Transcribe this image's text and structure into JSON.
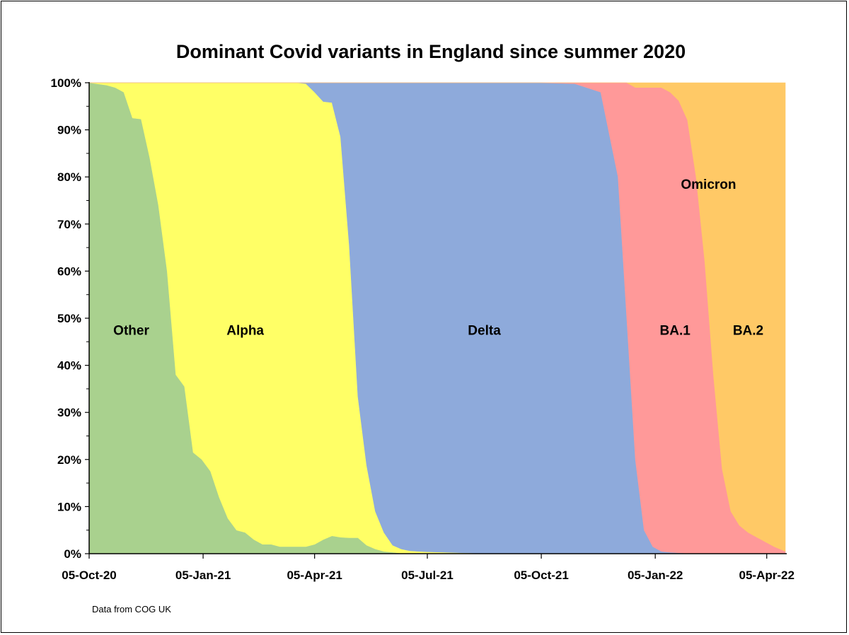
{
  "chart_data": {
    "type": "area",
    "title": "Dominant Covid variants in England since summer 2020",
    "xlabel": "",
    "ylabel": "",
    "stacked": true,
    "normalized": true,
    "grid": false,
    "legend": "none (series labelled inside areas)",
    "x_ticks": [
      "05-Oct-20",
      "05-Jan-21",
      "05-Apr-21",
      "05-Jul-21",
      "05-Oct-21",
      "05-Jan-22",
      "05-Apr-22"
    ],
    "y_ticks": [
      "0%",
      "10%",
      "20%",
      "30%",
      "40%",
      "50%",
      "60%",
      "70%",
      "80%",
      "90%",
      "100%"
    ],
    "ylim": [
      0,
      100
    ],
    "xlim": [
      "2020-10-05",
      "2022-04-20"
    ],
    "x": [
      "2020-10-05",
      "2020-10-19",
      "2020-10-26",
      "2020-11-02",
      "2020-11-09",
      "2020-11-16",
      "2020-11-23",
      "2020-11-30",
      "2020-12-07",
      "2020-12-14",
      "2020-12-21",
      "2020-12-28",
      "2021-01-04",
      "2021-01-11",
      "2021-01-18",
      "2021-01-25",
      "2021-02-01",
      "2021-02-08",
      "2021-02-15",
      "2021-02-22",
      "2021-03-01",
      "2021-03-08",
      "2021-03-15",
      "2021-03-22",
      "2021-03-29",
      "2021-04-05",
      "2021-04-12",
      "2021-04-19",
      "2021-04-26",
      "2021-05-03",
      "2021-05-10",
      "2021-05-17",
      "2021-05-24",
      "2021-05-31",
      "2021-06-07",
      "2021-06-14",
      "2021-06-21",
      "2021-06-28",
      "2021-07-05",
      "2021-07-19",
      "2021-08-02",
      "2021-08-16",
      "2021-09-06",
      "2021-10-04",
      "2021-11-01",
      "2021-11-22",
      "2021-12-06",
      "2021-12-13",
      "2021-12-20",
      "2021-12-27",
      "2022-01-03",
      "2022-01-10",
      "2022-01-17",
      "2022-01-24",
      "2022-01-31",
      "2022-02-07",
      "2022-02-14",
      "2022-02-21",
      "2022-02-28",
      "2022-03-07",
      "2022-03-14",
      "2022-03-21",
      "2022-03-28",
      "2022-04-04",
      "2022-04-11",
      "2022-04-20"
    ],
    "series": [
      {
        "name": "Other",
        "color": "#a9d18e",
        "values": [
          100,
          99.5,
          99,
          98,
          92.5,
          92.3,
          84,
          74,
          60,
          38,
          35.5,
          21.5,
          20,
          17.5,
          12,
          7.5,
          5,
          4.5,
          3,
          2,
          2,
          1.5,
          1.5,
          1.5,
          1.5,
          2,
          3,
          3.8,
          3.5,
          3.4,
          3.4,
          1.8,
          1,
          0.5,
          0.3,
          0.1,
          0,
          0,
          0,
          0,
          0,
          0,
          0,
          0,
          0,
          0,
          0,
          0,
          0,
          0,
          0,
          0,
          0,
          0,
          0,
          0,
          0,
          0,
          0,
          0,
          0,
          0,
          0,
          0,
          0,
          0
        ]
      },
      {
        "name": "Alpha",
        "color": "#ffff66",
        "values": [
          0,
          0.5,
          1,
          2,
          7.5,
          7.7,
          16,
          26,
          40,
          62,
          64.5,
          78.5,
          80,
          82.5,
          88,
          92.5,
          95,
          95.5,
          97,
          98,
          98,
          98.5,
          98.5,
          98.5,
          98.3,
          96,
          93,
          92,
          85,
          62,
          30,
          17,
          8,
          4,
          1.5,
          0.9,
          0.6,
          0.5,
          0.4,
          0.3,
          0.2,
          0.1,
          0,
          0,
          0,
          0,
          0,
          0,
          0,
          0,
          0,
          0,
          0,
          0,
          0,
          0,
          0,
          0,
          0,
          0,
          0,
          0,
          0,
          0,
          0,
          0
        ]
      },
      {
        "name": "Delta",
        "color": "#8eaadb",
        "values": [
          0,
          0,
          0,
          0,
          0,
          0,
          0,
          0,
          0,
          0,
          0,
          0,
          0,
          0,
          0,
          0,
          0,
          0,
          0,
          0,
          0,
          0,
          0,
          0,
          0.2,
          2,
          4,
          4.2,
          11.5,
          34.6,
          66.6,
          81.2,
          91,
          95.5,
          98.2,
          99,
          99.4,
          99.5,
          99.6,
          99.7,
          99.8,
          99.9,
          100,
          100,
          99.8,
          98,
          80,
          50,
          20,
          5,
          1.5,
          0.5,
          0.3,
          0.2,
          0.1,
          0,
          0,
          0,
          0,
          0,
          0,
          0,
          0,
          0,
          0,
          0
        ]
      },
      {
        "name": "BA.1",
        "color": "#ff9999",
        "values": [
          0,
          0,
          0,
          0,
          0,
          0,
          0,
          0,
          0,
          0,
          0,
          0,
          0,
          0,
          0,
          0,
          0,
          0,
          0,
          0,
          0,
          0,
          0,
          0,
          0,
          0,
          0,
          0,
          0,
          0,
          0,
          0,
          0,
          0,
          0,
          0,
          0,
          0,
          0,
          0,
          0,
          0,
          0,
          0,
          0.2,
          2,
          20,
          50,
          79,
          94,
          97.5,
          98.5,
          97.7,
          96,
          92,
          80,
          62,
          38,
          18,
          9,
          6,
          4.5,
          3.5,
          2.5,
          1.5,
          0.5
        ]
      },
      {
        "name": "BA.2",
        "color": "#ffc966",
        "values": [
          0,
          0,
          0,
          0,
          0,
          0,
          0,
          0,
          0,
          0,
          0,
          0,
          0,
          0,
          0,
          0,
          0,
          0,
          0,
          0,
          0,
          0,
          0,
          0,
          0,
          0,
          0,
          0,
          0,
          0,
          0,
          0,
          0,
          0,
          0,
          0,
          0,
          0,
          0,
          0,
          0,
          0,
          0,
          0,
          0,
          0,
          0,
          0,
          1,
          1,
          1,
          1,
          2,
          3.8,
          7.9,
          20,
          38,
          62,
          82,
          91,
          94,
          95.5,
          96.5,
          97.5,
          98.5,
          99.5
        ]
      }
    ],
    "annotations": [
      {
        "text": "Other",
        "x": "2020-11-08",
        "y": 47.5
      },
      {
        "text": "Alpha",
        "x": "2021-02-08",
        "y": 47.5
      },
      {
        "text": "Delta",
        "x": "2021-08-20",
        "y": 47.5
      },
      {
        "text": "BA.1",
        "x": "2022-01-21",
        "y": 47.5
      },
      {
        "text": "BA.2",
        "x": "2022-03-21",
        "y": 47.5
      },
      {
        "text": "Omicron",
        "x": "2022-02-17",
        "y": 78.5
      }
    ],
    "source_note": "Data from COG UK"
  }
}
